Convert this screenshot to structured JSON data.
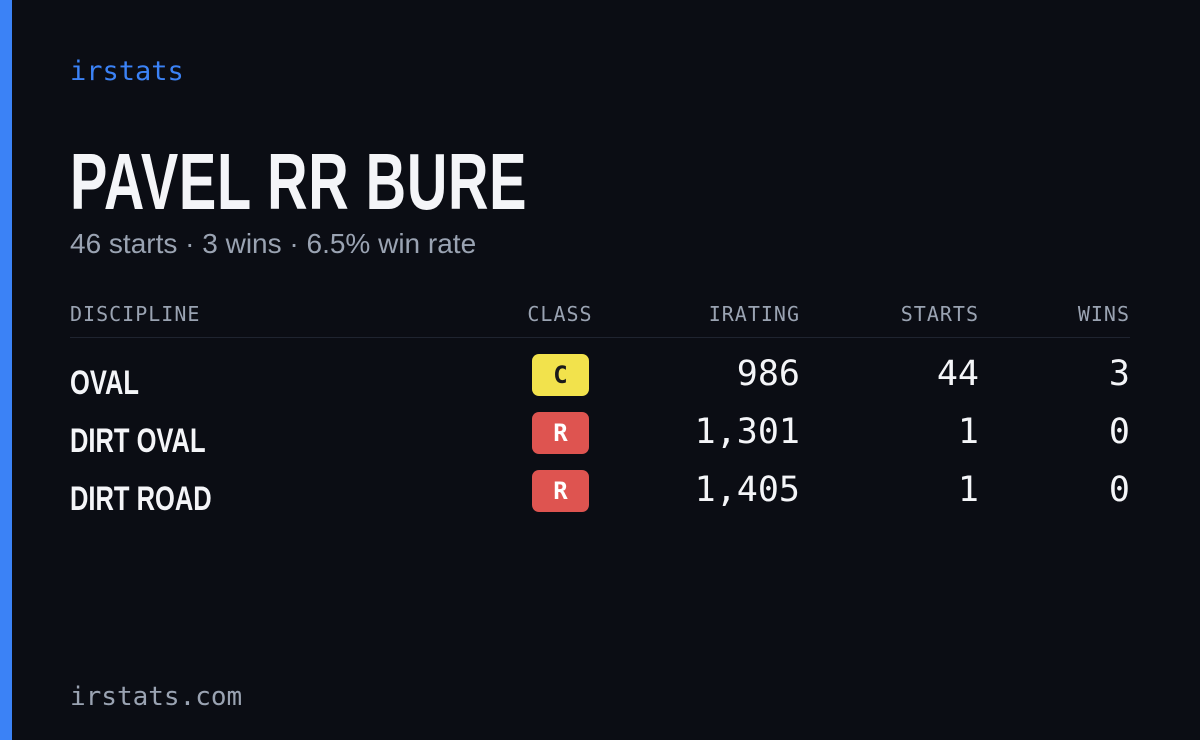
{
  "brand": "irstats",
  "header": {
    "name": "PAVEL RR BURE",
    "summary": "46 starts · 3 wins · 6.5% win rate"
  },
  "table": {
    "columns": [
      "DISCIPLINE",
      "CLASS",
      "IRATING",
      "STARTS",
      "WINS"
    ],
    "rows": [
      {
        "discipline": "OVAL",
        "class": "C",
        "class_color": "#f2e24c",
        "irating": "986",
        "starts": "44",
        "wins": "3"
      },
      {
        "discipline": "DIRT OVAL",
        "class": "R",
        "class_color": "#de5450",
        "irating": "1,301",
        "starts": "1",
        "wins": "0"
      },
      {
        "discipline": "DIRT ROAD",
        "class": "R",
        "class_color": "#de5450",
        "irating": "1,405",
        "starts": "1",
        "wins": "0"
      }
    ]
  },
  "footer": "irstats.com"
}
